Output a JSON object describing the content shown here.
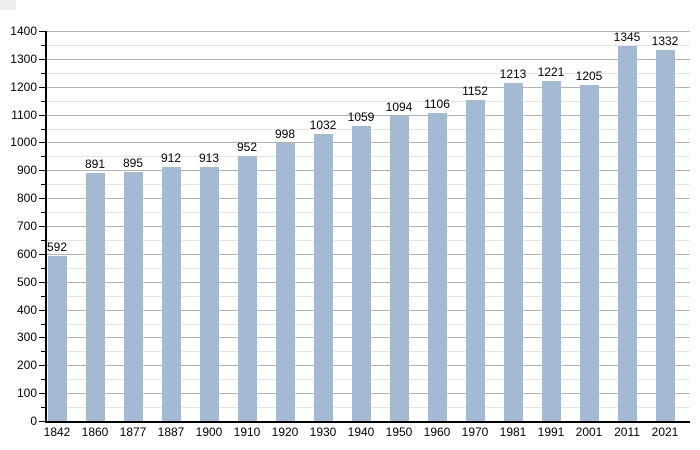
{
  "chart_data": {
    "type": "bar",
    "title": "",
    "xlabel": "",
    "ylabel": "",
    "categories": [
      "1842",
      "1860",
      "1877",
      "1887",
      "1900",
      "1910",
      "1920",
      "1930",
      "1940",
      "1950",
      "1960",
      "1970",
      "1981",
      "1991",
      "2001",
      "2011",
      "2021"
    ],
    "values": [
      592,
      891,
      895,
      912,
      913,
      952,
      998,
      1032,
      1059,
      1094,
      1106,
      1152,
      1213,
      1221,
      1205,
      1345,
      1332
    ],
    "value_labels_shown": true,
    "ylim": [
      0,
      1400
    ],
    "ytick_major_step": 100,
    "ytick_minor_step": 50,
    "ytick_labels": [
      "0",
      "100",
      "200",
      "300",
      "400",
      "500",
      "600",
      "700",
      "800",
      "900",
      "1000",
      "1100",
      "1200",
      "1300",
      "1400"
    ],
    "grid": true,
    "legend": false,
    "colors": {
      "bar": "#a4bad2",
      "grid_major": "#b3b3b3",
      "grid_minor": "#e5e5e5",
      "axis": "#000000",
      "text": "#000000",
      "background": "#ffffff",
      "corner_artifact": "#ededed"
    }
  }
}
